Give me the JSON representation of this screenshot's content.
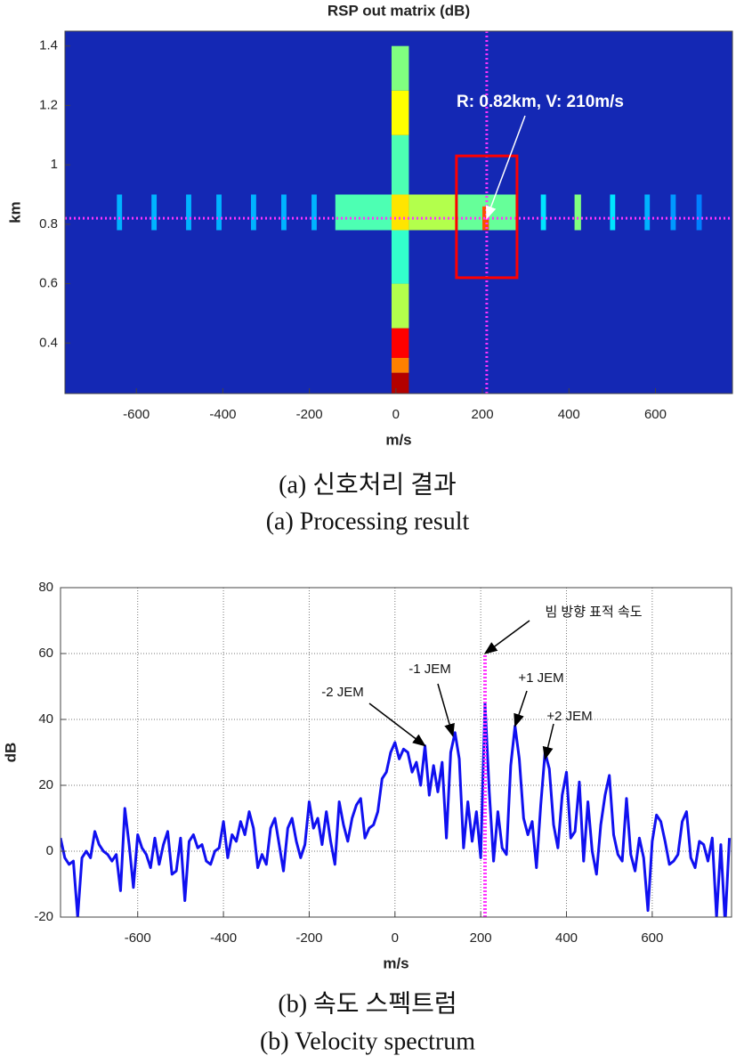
{
  "chart_data": [
    {
      "type": "heatmap",
      "title": "RSP out matrix (dB)",
      "xlabel": "m/s",
      "ylabel": "km",
      "xlim": [
        -765,
        778
      ],
      "ylim": [
        0.23,
        1.45
      ],
      "xticks": [
        -600,
        -400,
        -200,
        0,
        200,
        400,
        600
      ],
      "yticks": [
        0.4,
        0.6,
        0.8,
        1,
        1.2,
        1.4
      ],
      "colormap": "jet",
      "clim": [
        0,
        40
      ],
      "background": "#1428b4",
      "cells": [
        {
          "x": [
            -140,
            -10
          ],
          "y": [
            0.78,
            0.9
          ],
          "v": 18
        },
        {
          "x": [
            30,
            140
          ],
          "y": [
            0.78,
            0.9
          ],
          "v": 22
        },
        {
          "x": [
            140,
            280
          ],
          "y": [
            0.78,
            0.9
          ],
          "v": 19
        },
        {
          "x": [
            200,
            215
          ],
          "y": [
            0.78,
            0.86
          ],
          "v": 32
        },
        {
          "x": [
            -645,
            -633
          ],
          "y": [
            0.78,
            0.9
          ],
          "v": 12
        },
        {
          "x": [
            -565,
            -553
          ],
          "y": [
            0.78,
            0.9
          ],
          "v": 12
        },
        {
          "x": [
            -485,
            -473
          ],
          "y": [
            0.78,
            0.9
          ],
          "v": 12
        },
        {
          "x": [
            -415,
            -403
          ],
          "y": [
            0.78,
            0.9
          ],
          "v": 12
        },
        {
          "x": [
            -335,
            -323
          ],
          "y": [
            0.78,
            0.9
          ],
          "v": 12
        },
        {
          "x": [
            -265,
            -253
          ],
          "y": [
            0.78,
            0.9
          ],
          "v": 12
        },
        {
          "x": [
            -195,
            -183
          ],
          "y": [
            0.78,
            0.9
          ],
          "v": 12
        },
        {
          "x": [
            335,
            347
          ],
          "y": [
            0.78,
            0.9
          ],
          "v": 14
        },
        {
          "x": [
            413,
            428
          ],
          "y": [
            0.78,
            0.9
          ],
          "v": 20
        },
        {
          "x": [
            495,
            507
          ],
          "y": [
            0.78,
            0.9
          ],
          "v": 14
        },
        {
          "x": [
            575,
            587
          ],
          "y": [
            0.78,
            0.9
          ],
          "v": 12
        },
        {
          "x": [
            635,
            647
          ],
          "y": [
            0.78,
            0.9
          ],
          "v": 11
        },
        {
          "x": [
            695,
            707
          ],
          "y": [
            0.78,
            0.9
          ],
          "v": 10
        },
        {
          "x": [
            -10,
            30
          ],
          "y": [
            0.23,
            0.3
          ],
          "v": 38
        },
        {
          "x": [
            -10,
            30
          ],
          "y": [
            0.3,
            0.35
          ],
          "v": 30
        },
        {
          "x": [
            -10,
            30
          ],
          "y": [
            0.35,
            0.45
          ],
          "v": 35
        },
        {
          "x": [
            -10,
            30
          ],
          "y": [
            0.45,
            0.6
          ],
          "v": 22
        },
        {
          "x": [
            -10,
            30
          ],
          "y": [
            0.6,
            0.78
          ],
          "v": 17
        },
        {
          "x": [
            -10,
            30
          ],
          "y": [
            0.78,
            0.9
          ],
          "v": 26
        },
        {
          "x": [
            -10,
            30
          ],
          "y": [
            0.9,
            1.1
          ],
          "v": 18
        },
        {
          "x": [
            -10,
            30
          ],
          "y": [
            1.1,
            1.25
          ],
          "v": 25
        },
        {
          "x": [
            -10,
            30
          ],
          "y": [
            1.25,
            1.4
          ],
          "v": 20
        }
      ],
      "crosshair": {
        "x": 210,
        "y": 0.82,
        "color": "#ff33ff"
      },
      "box": {
        "x": [
          140,
          280
        ],
        "y": [
          0.62,
          1.03
        ],
        "color": "#ff0000"
      },
      "annotations": [
        {
          "text": "R: 0.82km, V: 210m/s",
          "x": 210,
          "y": 0.82
        }
      ]
    },
    {
      "type": "line",
      "xlabel": "m/s",
      "ylabel": "dB",
      "xlim": [
        -780,
        785
      ],
      "ylim": [
        -20,
        80
      ],
      "xticks": [
        -600,
        -400,
        -200,
        0,
        200,
        400,
        600
      ],
      "yticks": [
        -20,
        0,
        20,
        40,
        60,
        80
      ],
      "grid": true,
      "x": [
        -780,
        -770,
        -760,
        -750,
        -740,
        -730,
        -720,
        -710,
        -700,
        -690,
        -680,
        -670,
        -660,
        -650,
        -640,
        -630,
        -620,
        -610,
        -600,
        -590,
        -580,
        -570,
        -560,
        -550,
        -540,
        -530,
        -520,
        -510,
        -500,
        -490,
        -480,
        -470,
        -460,
        -450,
        -440,
        -430,
        -420,
        -410,
        -400,
        -390,
        -380,
        -370,
        -360,
        -350,
        -340,
        -330,
        -320,
        -310,
        -300,
        -290,
        -280,
        -270,
        -260,
        -250,
        -240,
        -230,
        -220,
        -210,
        -200,
        -190,
        -180,
        -170,
        -160,
        -150,
        -140,
        -130,
        -120,
        -110,
        -100,
        -90,
        -80,
        -70,
        -60,
        -50,
        -40,
        -30,
        -20,
        -10,
        0,
        10,
        20,
        30,
        40,
        50,
        60,
        70,
        80,
        90,
        100,
        110,
        120,
        130,
        140,
        150,
        160,
        170,
        180,
        190,
        200,
        210,
        220,
        230,
        240,
        250,
        260,
        270,
        280,
        290,
        300,
        310,
        320,
        330,
        340,
        350,
        360,
        370,
        380,
        390,
        400,
        410,
        420,
        430,
        440,
        450,
        460,
        470,
        480,
        490,
        500,
        510,
        520,
        530,
        540,
        550,
        560,
        570,
        580,
        590,
        600,
        610,
        620,
        630,
        640,
        650,
        660,
        670,
        680,
        690,
        700,
        710,
        720,
        730,
        740,
        750,
        760,
        770,
        780
      ],
      "series": [
        {
          "color": "#1010f0",
          "values": [
            4,
            -2,
            -4,
            -3,
            -20,
            -2,
            0,
            -2,
            6,
            2,
            0,
            -1,
            -3,
            -1,
            -12,
            13,
            2,
            -11,
            5,
            1,
            -1,
            -5,
            4,
            -4,
            2,
            6,
            -7,
            -6,
            4,
            -15,
            3,
            5,
            1,
            2,
            -3,
            -4,
            0,
            1,
            9,
            -2,
            5,
            3,
            9,
            5,
            12,
            7,
            -5,
            -1,
            -4,
            7,
            10,
            2,
            -6,
            7,
            10,
            3,
            -2,
            2,
            15,
            7,
            10,
            2,
            12,
            3,
            -4,
            15,
            8,
            3,
            10,
            14,
            16,
            4,
            7,
            8,
            12,
            22,
            24,
            30,
            33,
            28,
            31,
            30,
            24,
            27,
            20,
            32,
            17,
            26,
            18,
            27,
            4,
            30,
            36,
            28,
            1,
            15,
            3,
            12,
            -2,
            45,
            18,
            -3,
            12,
            1,
            -1,
            26,
            38,
            28,
            10,
            5,
            9,
            -5,
            14,
            30,
            25,
            8,
            1,
            17,
            24,
            4,
            6,
            21,
            -3,
            15,
            0,
            -7,
            8,
            17,
            23,
            5,
            -1,
            -3,
            16,
            -1,
            -6,
            4,
            -2,
            -18,
            3,
            11,
            9,
            3,
            -4,
            -3,
            -1,
            9,
            12,
            -2,
            -5,
            3,
            2,
            -3,
            4,
            -20,
            2,
            -22,
            4
          ]
        }
      ],
      "marker_line": {
        "x": 210,
        "y": [
          -20,
          60
        ],
        "color": "#ff33ff"
      },
      "annotations": [
        {
          "text": "빔 방향 표적 속도",
          "x": 210,
          "y": 60
        },
        {
          "text": "-2 JEM",
          "x": 70,
          "y": 32
        },
        {
          "text": "-1 JEM",
          "x": 135,
          "y": 35
        },
        {
          "text": "+1 JEM",
          "x": 280,
          "y": 38
        },
        {
          "text": "+2 JEM",
          "x": 350,
          "y": 28
        }
      ]
    }
  ],
  "captions": [
    "(a) 신호처리 결과",
    "(a) Processing result",
    "(b) 속도 스펙트럼",
    "(b) Velocity spectrum"
  ]
}
